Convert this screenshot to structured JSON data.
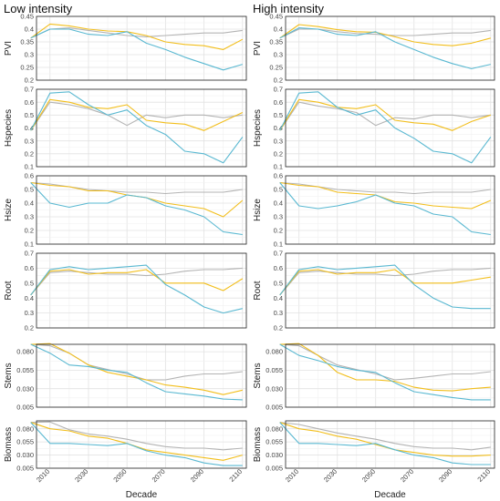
{
  "colors": {
    "grey": "#b3b3b3",
    "yellow": "#f2be1b",
    "blue": "#59b8d1"
  },
  "chart_data": [
    {
      "type": "line",
      "title": "Low intensity",
      "ylabel": "PVI",
      "ylim": [
        0.2,
        0.45
      ],
      "yticks": [
        "0.2",
        "0.25",
        "0.3",
        "0.35",
        "0.4",
        "0.45"
      ],
      "x": [
        2000,
        2010,
        2020,
        2030,
        2040,
        2050,
        2060,
        2070,
        2080,
        2090,
        2100,
        2110
      ],
      "series": [
        {
          "color": "grey",
          "values": [
            0.365,
            0.4,
            0.405,
            0.395,
            0.385,
            0.375,
            0.37,
            0.375,
            0.38,
            0.385,
            0.385,
            0.395
          ]
        },
        {
          "color": "yellow",
          "values": [
            0.365,
            0.42,
            0.413,
            0.4,
            0.393,
            0.39,
            0.375,
            0.35,
            0.34,
            0.335,
            0.32,
            0.36
          ]
        },
        {
          "color": "blue",
          "values": [
            0.365,
            0.4,
            0.4,
            0.38,
            0.375,
            0.39,
            0.345,
            0.32,
            0.29,
            0.265,
            0.24,
            0.262
          ]
        }
      ]
    },
    {
      "type": "line",
      "title": "High intensity",
      "ylabel": "PVI",
      "ylim": [
        0.2,
        0.45
      ],
      "yticks": [
        "0.2",
        "0.25",
        "0.3",
        "0.35",
        "0.4",
        "0.45"
      ],
      "x": [
        2000,
        2010,
        2020,
        2030,
        2040,
        2050,
        2060,
        2070,
        2080,
        2090,
        2100,
        2110
      ],
      "series": [
        {
          "color": "grey",
          "values": [
            0.365,
            0.4,
            0.4,
            0.39,
            0.383,
            0.38,
            0.375,
            0.375,
            0.38,
            0.385,
            0.385,
            0.395
          ]
        },
        {
          "color": "yellow",
          "values": [
            0.365,
            0.418,
            0.41,
            0.398,
            0.39,
            0.388,
            0.37,
            0.35,
            0.34,
            0.335,
            0.345,
            0.365
          ]
        },
        {
          "color": "blue",
          "values": [
            0.365,
            0.405,
            0.4,
            0.38,
            0.375,
            0.39,
            0.35,
            0.32,
            0.29,
            0.265,
            0.245,
            0.262
          ]
        }
      ]
    },
    {
      "type": "line",
      "title": "",
      "ylabel": "Hspecies",
      "ylim": [
        0.1,
        0.7
      ],
      "yticks": [
        "0.1",
        "0.2",
        "0.3",
        "0.4",
        "0.5",
        "0.6",
        "0.7"
      ],
      "x": [
        2000,
        2010,
        2020,
        2030,
        2040,
        2050,
        2060,
        2070,
        2080,
        2090,
        2100,
        2110
      ],
      "series": [
        {
          "color": "grey",
          "values": [
            0.38,
            0.6,
            0.58,
            0.55,
            0.5,
            0.42,
            0.5,
            0.48,
            0.5,
            0.5,
            0.48,
            0.5
          ]
        },
        {
          "color": "yellow",
          "values": [
            0.38,
            0.62,
            0.6,
            0.56,
            0.55,
            0.58,
            0.46,
            0.44,
            0.43,
            0.38,
            0.45,
            0.52
          ]
        },
        {
          "color": "blue",
          "values": [
            0.38,
            0.67,
            0.68,
            0.58,
            0.5,
            0.54,
            0.42,
            0.35,
            0.22,
            0.2,
            0.13,
            0.33
          ]
        }
      ]
    },
    {
      "type": "line",
      "title": "",
      "ylabel": "Hspecies",
      "ylim": [
        0.1,
        0.7
      ],
      "yticks": [
        "0.1",
        "0.2",
        "0.3",
        "0.4",
        "0.5",
        "0.6",
        "0.7"
      ],
      "x": [
        2000,
        2010,
        2020,
        2030,
        2040,
        2050,
        2060,
        2070,
        2080,
        2090,
        2100,
        2110
      ],
      "series": [
        {
          "color": "grey",
          "values": [
            0.38,
            0.6,
            0.57,
            0.55,
            0.52,
            0.42,
            0.48,
            0.47,
            0.5,
            0.5,
            0.48,
            0.5
          ]
        },
        {
          "color": "yellow",
          "values": [
            0.38,
            0.62,
            0.6,
            0.56,
            0.55,
            0.58,
            0.46,
            0.44,
            0.43,
            0.38,
            0.45,
            0.5
          ]
        },
        {
          "color": "blue",
          "values": [
            0.38,
            0.67,
            0.68,
            0.56,
            0.5,
            0.54,
            0.4,
            0.32,
            0.22,
            0.2,
            0.13,
            0.33
          ]
        }
      ]
    },
    {
      "type": "line",
      "title": "",
      "ylabel": "Hsize",
      "ylim": [
        0.1,
        0.6
      ],
      "yticks": [
        "0.1",
        "0.2",
        "0.3",
        "0.4",
        "0.5",
        "0.6"
      ],
      "x": [
        2000,
        2010,
        2020,
        2030,
        2040,
        2050,
        2060,
        2070,
        2080,
        2090,
        2100,
        2110
      ],
      "series": [
        {
          "color": "grey",
          "values": [
            0.55,
            0.54,
            0.52,
            0.5,
            0.49,
            0.48,
            0.48,
            0.47,
            0.48,
            0.48,
            0.48,
            0.5
          ]
        },
        {
          "color": "yellow",
          "values": [
            0.55,
            0.53,
            0.52,
            0.49,
            0.49,
            0.46,
            0.44,
            0.4,
            0.38,
            0.36,
            0.3,
            0.42
          ]
        },
        {
          "color": "blue",
          "values": [
            0.55,
            0.4,
            0.37,
            0.4,
            0.4,
            0.46,
            0.44,
            0.38,
            0.35,
            0.3,
            0.19,
            0.17
          ]
        }
      ]
    },
    {
      "type": "line",
      "title": "",
      "ylabel": "Hsize",
      "ylim": [
        0.1,
        0.6
      ],
      "yticks": [
        "0.1",
        "0.2",
        "0.3",
        "0.4",
        "0.5",
        "0.6"
      ],
      "x": [
        2000,
        2010,
        2020,
        2030,
        2040,
        2050,
        2060,
        2070,
        2080,
        2090,
        2100,
        2110
      ],
      "series": [
        {
          "color": "grey",
          "values": [
            0.55,
            0.54,
            0.52,
            0.5,
            0.49,
            0.48,
            0.48,
            0.47,
            0.48,
            0.48,
            0.48,
            0.5
          ]
        },
        {
          "color": "yellow",
          "values": [
            0.55,
            0.53,
            0.52,
            0.48,
            0.47,
            0.46,
            0.41,
            0.4,
            0.38,
            0.37,
            0.36,
            0.42
          ]
        },
        {
          "color": "blue",
          "values": [
            0.55,
            0.38,
            0.36,
            0.38,
            0.41,
            0.46,
            0.4,
            0.38,
            0.32,
            0.3,
            0.19,
            0.17
          ]
        }
      ]
    },
    {
      "type": "line",
      "title": "",
      "ylabel": "Root",
      "ylim": [
        0.2,
        0.7
      ],
      "yticks": [
        "0.2",
        "0.3",
        "0.4",
        "0.5",
        "0.6",
        "0.7"
      ],
      "x": [
        2000,
        2010,
        2020,
        2030,
        2040,
        2050,
        2060,
        2070,
        2080,
        2090,
        2100,
        2110
      ],
      "series": [
        {
          "color": "grey",
          "values": [
            0.42,
            0.57,
            0.58,
            0.57,
            0.56,
            0.56,
            0.55,
            0.56,
            0.58,
            0.59,
            0.59,
            0.6
          ]
        },
        {
          "color": "yellow",
          "values": [
            0.42,
            0.58,
            0.59,
            0.56,
            0.57,
            0.57,
            0.59,
            0.5,
            0.5,
            0.5,
            0.45,
            0.53
          ]
        },
        {
          "color": "blue",
          "values": [
            0.42,
            0.59,
            0.61,
            0.59,
            0.6,
            0.61,
            0.62,
            0.49,
            0.42,
            0.34,
            0.3,
            0.33
          ]
        }
      ]
    },
    {
      "type": "line",
      "title": "",
      "ylabel": "Root",
      "ylim": [
        0.2,
        0.7
      ],
      "yticks": [
        "0.2",
        "0.3",
        "0.4",
        "0.5",
        "0.6",
        "0.7"
      ],
      "x": [
        2000,
        2010,
        2020,
        2030,
        2040,
        2050,
        2060,
        2070,
        2080,
        2090,
        2100,
        2110
      ],
      "series": [
        {
          "color": "grey",
          "values": [
            0.42,
            0.57,
            0.58,
            0.57,
            0.56,
            0.56,
            0.55,
            0.56,
            0.58,
            0.59,
            0.59,
            0.6
          ]
        },
        {
          "color": "yellow",
          "values": [
            0.42,
            0.58,
            0.59,
            0.56,
            0.57,
            0.57,
            0.59,
            0.5,
            0.5,
            0.5,
            0.52,
            0.54
          ]
        },
        {
          "color": "blue",
          "values": [
            0.42,
            0.59,
            0.61,
            0.59,
            0.6,
            0.61,
            0.62,
            0.49,
            0.4,
            0.34,
            0.33,
            0.33
          ]
        }
      ]
    },
    {
      "type": "line",
      "title": "",
      "ylabel": "Stems",
      "ylim": [
        0.005,
        0.09
      ],
      "yticks": [
        "0.005",
        "0.030",
        "0.055",
        "0.080"
      ],
      "x": [
        2000,
        2010,
        2020,
        2030,
        2040,
        2050,
        2060,
        2070,
        2080,
        2090,
        2100,
        2110
      ],
      "series": [
        {
          "color": "grey",
          "values": [
            0.09,
            0.088,
            0.078,
            0.062,
            0.056,
            0.05,
            0.042,
            0.042,
            0.047,
            0.05,
            0.05,
            0.053
          ]
        },
        {
          "color": "yellow",
          "values": [
            0.09,
            0.091,
            0.078,
            0.062,
            0.052,
            0.047,
            0.042,
            0.035,
            0.032,
            0.028,
            0.022,
            0.028
          ]
        },
        {
          "color": "blue",
          "values": [
            0.09,
            0.078,
            0.062,
            0.06,
            0.055,
            0.052,
            0.038,
            0.026,
            0.023,
            0.02,
            0.016,
            0.015
          ]
        }
      ]
    },
    {
      "type": "line",
      "title": "",
      "ylabel": "Stems",
      "ylim": [
        0.005,
        0.09
      ],
      "yticks": [
        "0.005",
        "0.030",
        "0.055",
        "0.080"
      ],
      "x": [
        2000,
        2010,
        2020,
        2030,
        2040,
        2050,
        2060,
        2070,
        2080,
        2090,
        2100,
        2110
      ],
      "series": [
        {
          "color": "grey",
          "values": [
            0.09,
            0.088,
            0.075,
            0.062,
            0.056,
            0.05,
            0.042,
            0.044,
            0.047,
            0.05,
            0.05,
            0.053
          ]
        },
        {
          "color": "yellow",
          "values": [
            0.09,
            0.091,
            0.075,
            0.052,
            0.042,
            0.042,
            0.04,
            0.032,
            0.028,
            0.027,
            0.03,
            0.032
          ]
        },
        {
          "color": "blue",
          "values": [
            0.09,
            0.075,
            0.068,
            0.06,
            0.055,
            0.052,
            0.038,
            0.026,
            0.022,
            0.018,
            0.015,
            0.015
          ]
        }
      ]
    },
    {
      "type": "line",
      "title": "",
      "ylabel": "Biomass",
      "ylim": [
        0.005,
        0.095
      ],
      "yticks": [
        "0.005",
        "0.030",
        "0.055",
        "0.080"
      ],
      "x": [
        2000,
        2010,
        2020,
        2030,
        2040,
        2050,
        2060,
        2070,
        2080,
        2090,
        2100,
        2110
      ],
      "series": [
        {
          "color": "grey",
          "values": [
            0.092,
            0.093,
            0.078,
            0.07,
            0.066,
            0.06,
            0.052,
            0.046,
            0.043,
            0.043,
            0.04,
            0.043
          ]
        },
        {
          "color": "yellow",
          "values": [
            0.092,
            0.08,
            0.076,
            0.066,
            0.062,
            0.052,
            0.04,
            0.035,
            0.03,
            0.025,
            0.02,
            0.03
          ]
        },
        {
          "color": "blue",
          "values": [
            0.092,
            0.052,
            0.052,
            0.05,
            0.048,
            0.052,
            0.038,
            0.03,
            0.025,
            0.015,
            0.01,
            0.01
          ]
        }
      ]
    },
    {
      "type": "line",
      "title": "",
      "ylabel": "Biomass",
      "ylim": [
        0.005,
        0.095
      ],
      "yticks": [
        "0.005",
        "0.030",
        "0.055",
        "0.080"
      ],
      "x": [
        2000,
        2010,
        2020,
        2030,
        2040,
        2050,
        2060,
        2070,
        2080,
        2090,
        2100,
        2110
      ],
      "series": [
        {
          "color": "grey",
          "values": [
            0.092,
            0.088,
            0.08,
            0.072,
            0.066,
            0.06,
            0.052,
            0.046,
            0.043,
            0.043,
            0.04,
            0.045
          ]
        },
        {
          "color": "yellow",
          "values": [
            0.092,
            0.08,
            0.075,
            0.066,
            0.06,
            0.05,
            0.04,
            0.035,
            0.03,
            0.028,
            0.028,
            0.03
          ]
        },
        {
          "color": "blue",
          "values": [
            0.092,
            0.052,
            0.052,
            0.05,
            0.048,
            0.052,
            0.04,
            0.03,
            0.025,
            0.015,
            0.012,
            0.012
          ]
        }
      ]
    }
  ],
  "xaxis": {
    "title": "Decade",
    "tick_values": [
      2010,
      2030,
      2050,
      2070,
      2090,
      2110
    ],
    "tick_labels": [
      "2010",
      "2030",
      "2050",
      "2070",
      "2090",
      "2110"
    ]
  }
}
